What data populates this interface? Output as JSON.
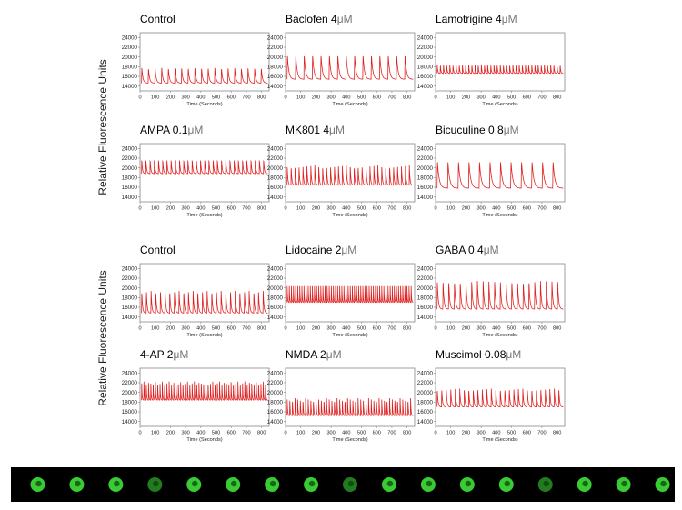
{
  "figure": {
    "y_axis_label": "Relative Fluorescence Units",
    "micro_symbol": "μM"
  },
  "chart_data": [
    {
      "type": "line",
      "title": "Control",
      "unit": "",
      "xlabel": "Time (Seconds)",
      "ylabel": "Relative Fluorescence Units",
      "xlim": [
        0,
        850
      ],
      "ylim": [
        13000,
        25000
      ],
      "yticks": [
        14000,
        16000,
        18000,
        20000,
        22000,
        24000
      ],
      "xticks": [
        0,
        100,
        200,
        300,
        400,
        500,
        600,
        700,
        800
      ],
      "baseline": 14600,
      "peak": 18600,
      "n_peaks": 19,
      "color": "#e02020"
    },
    {
      "type": "line",
      "title": "Baclofen 4",
      "unit": "μM",
      "xlabel": "Time (Seconds)",
      "ylabel": "Relative Fluorescence Units",
      "xlim": [
        0,
        850
      ],
      "ylim": [
        13000,
        25000
      ],
      "yticks": [
        14000,
        16000,
        18000,
        20000,
        22000,
        24000
      ],
      "xticks": [
        0,
        100,
        200,
        300,
        400,
        500,
        600,
        700,
        800
      ],
      "baseline": 15400,
      "peak": 21800,
      "n_peaks": 15,
      "color": "#e02020"
    },
    {
      "type": "line",
      "title": "Lamotrigine 4",
      "unit": "μM",
      "xlabel": "Time (Seconds)",
      "ylabel": "Relative Fluorescence Units",
      "xlim": [
        0,
        850
      ],
      "ylim": [
        13000,
        25000
      ],
      "yticks": [
        14000,
        16000,
        18000,
        20000,
        22000,
        24000
      ],
      "xticks": [
        0,
        100,
        200,
        300,
        400,
        500,
        600,
        700,
        800
      ],
      "baseline": 16600,
      "peak": 19000,
      "n_peaks": 40,
      "color": "#e02020"
    },
    {
      "type": "line",
      "title": "AMPA  0.1",
      "unit": "μM",
      "xlabel": "Time (Seconds)",
      "ylabel": "Relative Fluorescence Units",
      "xlim": [
        0,
        850
      ],
      "ylim": [
        13000,
        25000
      ],
      "yticks": [
        14000,
        16000,
        18000,
        20000,
        22000,
        24000
      ],
      "xticks": [
        0,
        100,
        200,
        300,
        400,
        500,
        600,
        700,
        800
      ],
      "baseline": 18800,
      "peak": 22600,
      "n_peaks": 30,
      "color": "#e02020"
    },
    {
      "type": "line",
      "title": "MK801  4",
      "unit": "μM",
      "xlabel": "Time (Seconds)",
      "ylabel": "Relative Fluorescence Units",
      "xlim": [
        0,
        850
      ],
      "ylim": [
        13000,
        25000
      ],
      "yticks": [
        14000,
        16000,
        18000,
        20000,
        22000,
        24000
      ],
      "xticks": [
        0,
        100,
        200,
        300,
        400,
        500,
        600,
        700,
        800
      ],
      "baseline": 16400,
      "peak": 21600,
      "n_peaks": 32,
      "color": "#e02020"
    },
    {
      "type": "line",
      "title": "Bicuculine 0.8",
      "unit": "μM",
      "xlabel": "Time (Seconds)",
      "ylabel": "Relative Fluorescence Units",
      "xlim": [
        0,
        850
      ],
      "ylim": [
        13000,
        25000
      ],
      "yticks": [
        14000,
        16000,
        18000,
        20000,
        22000,
        24000
      ],
      "xticks": [
        0,
        100,
        200,
        300,
        400,
        500,
        600,
        700,
        800
      ],
      "baseline": 15800,
      "peak": 22600,
      "n_peaks": 12,
      "color": "#e02020"
    },
    {
      "type": "line",
      "title": "Control",
      "unit": "",
      "xlabel": "Time (Seconds)",
      "ylabel": "Relative Fluorescence Units",
      "xlim": [
        0,
        850
      ],
      "ylim": [
        13000,
        25000
      ],
      "yticks": [
        14000,
        16000,
        18000,
        20000,
        22000,
        24000
      ],
      "xticks": [
        0,
        100,
        200,
        300,
        400,
        500,
        600,
        700,
        800
      ],
      "baseline": 14800,
      "peak": 20600,
      "n_peaks": 27,
      "color": "#e02020"
    },
    {
      "type": "line",
      "title": "Lidocaine 2",
      "unit": "μM",
      "xlabel": "Time (Seconds)",
      "ylabel": "Relative Fluorescence Units",
      "xlim": [
        0,
        850
      ],
      "ylim": [
        13000,
        25000
      ],
      "yticks": [
        14000,
        16000,
        18000,
        20000,
        22000,
        24000
      ],
      "xticks": [
        0,
        100,
        200,
        300,
        400,
        500,
        600,
        700,
        800
      ],
      "baseline": 17000,
      "peak": 22000,
      "n_peaks": 60,
      "color": "#e02020"
    },
    {
      "type": "line",
      "title": "GABA  0.4",
      "unit": "μM",
      "xlabel": "Time (Seconds)",
      "ylabel": "Relative Fluorescence Units",
      "xlim": [
        0,
        850
      ],
      "ylim": [
        13000,
        25000
      ],
      "yticks": [
        14000,
        16000,
        18000,
        20000,
        22000,
        24000
      ],
      "xticks": [
        0,
        100,
        200,
        300,
        400,
        500,
        600,
        700,
        800
      ],
      "baseline": 15600,
      "peak": 23000,
      "n_peaks": 22,
      "color": "#e02020"
    },
    {
      "type": "line",
      "title": "4-AP  2",
      "unit": "μM",
      "xlabel": "Time (Seconds)",
      "ylabel": "Relative Fluorescence Units",
      "xlim": [
        0,
        850
      ],
      "ylim": [
        13000,
        25000
      ],
      "yticks": [
        14000,
        16000,
        18000,
        20000,
        22000,
        24000
      ],
      "xticks": [
        0,
        100,
        200,
        300,
        400,
        500,
        600,
        700,
        800
      ],
      "baseline": 18400,
      "peak": 23400,
      "n_peaks": 55,
      "color": "#e02020"
    },
    {
      "type": "line",
      "title": "NMDA  2",
      "unit": "μM",
      "xlabel": "Time (Seconds)",
      "ylabel": "Relative Fluorescence Units",
      "xlim": [
        0,
        850
      ],
      "ylim": [
        13000,
        25000
      ],
      "yticks": [
        14000,
        16000,
        18000,
        20000,
        22000,
        24000
      ],
      "xticks": [
        0,
        100,
        200,
        300,
        400,
        500,
        600,
        700,
        800
      ],
      "baseline": 15200,
      "peak": 19800,
      "n_peaks": 48,
      "color": "#e02020"
    },
    {
      "type": "line",
      "title": "Muscimol  0.08",
      "unit": "μM",
      "xlabel": "Time (Seconds)",
      "ylabel": "Relative Fluorescence Units",
      "xlim": [
        0,
        850
      ],
      "ylim": [
        13000,
        25000
      ],
      "yticks": [
        14000,
        16000,
        18000,
        20000,
        22000,
        24000
      ],
      "xticks": [
        0,
        100,
        200,
        300,
        400,
        500,
        600,
        700,
        800
      ],
      "baseline": 17000,
      "peak": 21800,
      "n_peaks": 28,
      "color": "#e02020"
    }
  ],
  "image_strip": {
    "frames": 17,
    "frame_color": "#3fe03a",
    "background": "#000000"
  }
}
